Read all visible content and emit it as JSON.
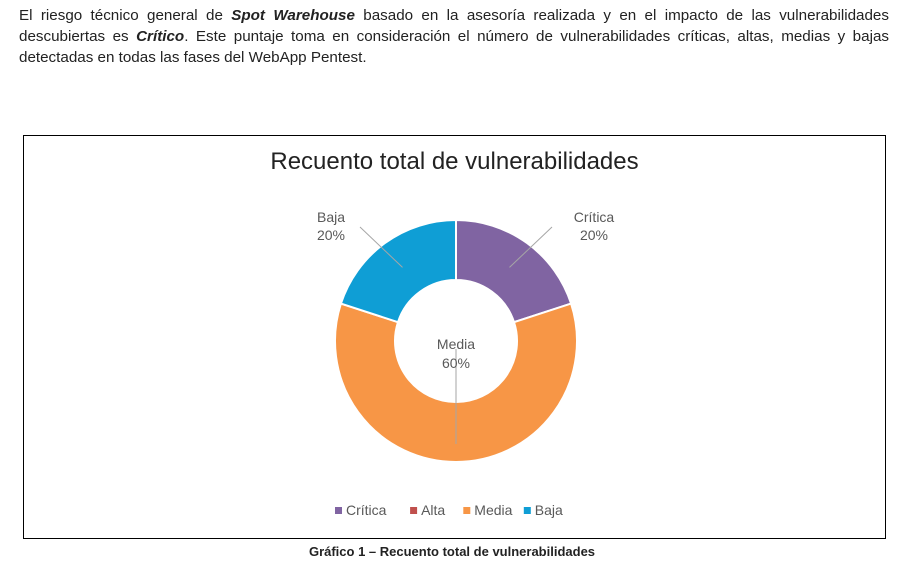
{
  "paragraph": {
    "p1": "El riesgo técnico general de ",
    "company": "Spot Warehouse",
    "p2": " basado en la asesoría realizada y en el impacto de las vulnerabilidades descubiertas es ",
    "rating": "Crítico",
    "p3": ".  Este puntaje toma en consideración el número de vulnerabilidades críticas, altas, medias y bajas detectadas en todas las fases del WebApp Pentest."
  },
  "chart_data": {
    "type": "pie",
    "variant": "donut",
    "title": "Recuento total de vulnerabilidades",
    "categories": [
      "Crítica",
      "Alta",
      "Media",
      "Baja"
    ],
    "values": [
      20,
      0,
      60,
      20
    ],
    "labels": [
      "20%",
      "",
      "60%",
      "20%"
    ],
    "colors": [
      "#8064a2",
      "#c0504d",
      "#f79646",
      "#0f9ed5"
    ],
    "legend_position": "bottom"
  },
  "caption": "Gráfico 1 – Recuento total de vulnerabilidades"
}
